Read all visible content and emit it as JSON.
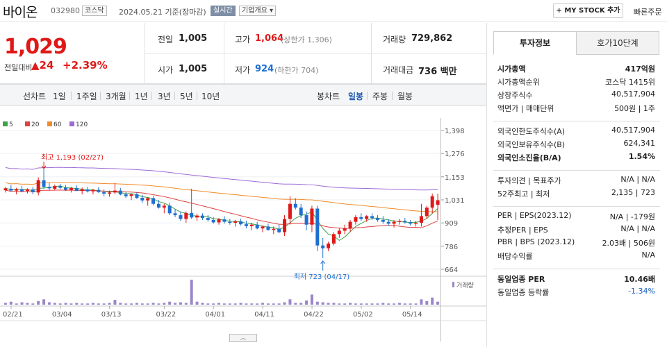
{
  "stock": {
    "name": "바이온",
    "code": "032980",
    "market_tag": "코스닥",
    "date_text": "2024.05.21 기준(장마감)",
    "realtime": "실시간",
    "company_info": "기업개요",
    "mystock": "MY STOCK 추가",
    "quick_order": "빠른주문"
  },
  "price": {
    "current": "1,029",
    "change_label": "전일대비",
    "change_value": "24",
    "change_arrow": "▲",
    "change_pct": "+2.39%"
  },
  "quote": {
    "prev_label": "전일",
    "prev": "1,005",
    "open_label": "시가",
    "open": "1,005",
    "high_label": "고가",
    "high": "1,064",
    "upper_limit": "(상한가 1,306)",
    "low_label": "저가",
    "low": "924",
    "lower_limit": "(하한가 704)",
    "volume_label": "거래량",
    "volume": "729,862",
    "amount_label": "거래대금",
    "amount": "736 백만"
  },
  "chart_tabs": {
    "line_label": "선차트",
    "line": [
      "1일",
      "1주일",
      "3개월",
      "1년",
      "3년",
      "5년",
      "10년"
    ],
    "candle_label": "봉차트",
    "candle": [
      "일봉",
      "주봉",
      "월봉"
    ],
    "selected_candle": "일봉"
  },
  "chart_data": {
    "type": "candlestick",
    "legend": [
      {
        "name": "5",
        "color": "#3aa44a"
      },
      {
        "name": "20",
        "color": "#e04040"
      },
      {
        "name": "60",
        "color": "#f08a2a"
      },
      {
        "name": "120",
        "color": "#9b6ad6"
      }
    ],
    "yticks": [
      "1,398",
      "1,276",
      "1,153",
      "1,031",
      "909",
      "786",
      "664"
    ],
    "ylim": [
      664,
      1398
    ],
    "xticks": [
      "02/21",
      "03/04",
      "03/13",
      "03/22",
      "04/01",
      "04/11",
      "04/22",
      "05/02",
      "05/14"
    ],
    "max_annotation": "최고 1,193 (02/27)",
    "min_annotation": "최저 723 (04/17)",
    "volume_label": "거래량",
    "candles": [
      [
        1082,
        1100,
        1070,
        1092
      ],
      [
        1090,
        1110,
        1075,
        1080
      ],
      [
        1080,
        1095,
        1060,
        1088
      ],
      [
        1088,
        1105,
        1072,
        1076
      ],
      [
        1078,
        1092,
        1065,
        1087
      ],
      [
        1086,
        1100,
        1060,
        1072
      ],
      [
        1070,
        1150,
        1055,
        1135
      ],
      [
        1135,
        1193,
        1090,
        1100
      ],
      [
        1100,
        1120,
        1082,
        1092
      ],
      [
        1090,
        1112,
        1080,
        1104
      ],
      [
        1104,
        1116,
        1088,
        1095
      ],
      [
        1096,
        1110,
        1078,
        1084
      ],
      [
        1084,
        1100,
        1070,
        1094
      ],
      [
        1094,
        1108,
        1080,
        1078
      ],
      [
        1078,
        1096,
        1060,
        1087
      ],
      [
        1086,
        1100,
        1070,
        1076
      ],
      [
        1076,
        1090,
        1060,
        1084
      ],
      [
        1084,
        1098,
        1068,
        1072
      ],
      [
        1072,
        1086,
        1050,
        1064
      ],
      [
        1064,
        1080,
        1048,
        1070
      ],
      [
        1070,
        1120,
        1060,
        1080
      ],
      [
        1080,
        1094,
        1055,
        1060
      ],
      [
        1060,
        1074,
        1040,
        1050
      ],
      [
        1052,
        1066,
        1030,
        1060
      ],
      [
        1060,
        1072,
        1035,
        1042
      ],
      [
        1042,
        1058,
        1015,
        1028
      ],
      [
        1028,
        1046,
        1000,
        1040
      ],
      [
        1040,
        1052,
        1002,
        1010
      ],
      [
        1010,
        1030,
        985,
        990
      ],
      [
        990,
        1010,
        960,
        1000
      ],
      [
        1000,
        1016,
        950,
        960
      ],
      [
        960,
        982,
        940,
        950
      ],
      [
        950,
        970,
        920,
        930
      ],
      [
        930,
        970,
        910,
        962
      ],
      [
        962,
        1090,
        930,
        938
      ],
      [
        938,
        958,
        920,
        948
      ],
      [
        948,
        960,
        925,
        935
      ],
      [
        935,
        950,
        915,
        925
      ],
      [
        925,
        940,
        905,
        912
      ],
      [
        912,
        935,
        900,
        928
      ],
      [
        928,
        945,
        905,
        915
      ],
      [
        915,
        930,
        900,
        910
      ],
      [
        910,
        925,
        890,
        918
      ],
      [
        918,
        932,
        895,
        902
      ],
      [
        902,
        920,
        880,
        892
      ],
      [
        892,
        910,
        870,
        900
      ],
      [
        900,
        915,
        875,
        880
      ],
      [
        880,
        895,
        860,
        890
      ],
      [
        890,
        905,
        868,
        872
      ],
      [
        872,
        890,
        850,
        878
      ],
      [
        878,
        900,
        855,
        860
      ],
      [
        860,
        950,
        840,
        930
      ],
      [
        930,
        1050,
        900,
        1010
      ],
      [
        1010,
        1040,
        980,
        990
      ],
      [
        990,
        1010,
        935,
        950
      ],
      [
        950,
        970,
        870,
        900
      ],
      [
        900,
        1000,
        860,
        985
      ],
      [
        985,
        1000,
        760,
        790
      ],
      [
        790,
        830,
        723,
        775
      ],
      [
        775,
        810,
        760,
        800
      ],
      [
        800,
        860,
        790,
        850
      ],
      [
        850,
        880,
        830,
        868
      ],
      [
        868,
        900,
        850,
        880
      ],
      [
        880,
        925,
        860,
        915
      ],
      [
        915,
        950,
        900,
        940
      ],
      [
        940,
        960,
        920,
        930
      ],
      [
        930,
        950,
        915,
        945
      ],
      [
        945,
        960,
        925,
        935
      ],
      [
        935,
        950,
        915,
        925
      ],
      [
        925,
        945,
        905,
        915
      ],
      [
        915,
        930,
        895,
        905
      ],
      [
        905,
        925,
        885,
        915
      ],
      [
        915,
        930,
        900,
        920
      ],
      [
        920,
        935,
        905,
        912
      ],
      [
        912,
        925,
        895,
        905
      ],
      [
        905,
        920,
        890,
        910
      ],
      [
        910,
        1010,
        890,
        945
      ],
      [
        945,
        1000,
        930,
        990
      ],
      [
        990,
        1064,
        960,
        1050
      ],
      [
        1005,
        1064,
        924,
        1029
      ]
    ],
    "volumes": [
      3,
      5,
      2,
      4,
      3,
      2,
      6,
      9,
      4,
      3,
      2,
      3,
      2,
      3,
      2,
      2,
      3,
      2,
      2,
      3,
      8,
      3,
      2,
      2,
      3,
      2,
      2,
      3,
      2,
      3,
      5,
      3,
      4,
      3,
      42,
      5,
      3,
      2,
      2,
      3,
      2,
      2,
      2,
      3,
      2,
      2,
      2,
      3,
      2,
      2,
      2,
      4,
      9,
      3,
      3,
      7,
      17,
      5,
      4,
      3,
      3,
      2,
      2,
      3,
      2,
      2,
      2,
      2,
      2,
      3,
      2,
      2,
      3,
      2,
      2,
      2,
      9,
      6,
      12,
      5
    ]
  },
  "right_tabs": [
    "투자정보",
    "호가10단계"
  ],
  "info": [
    {
      "label": "시가총액",
      "value": "417억원",
      "bold": true
    },
    {
      "label": "시가총액순위",
      "value": "코스닥  1415위"
    },
    {
      "label": "상장주식수",
      "value": "40,517,904"
    },
    {
      "label": "액면가 | 매매단위",
      "value": "500원 | 1주"
    },
    {
      "label": "외국인한도주식수(A)",
      "value": "40,517,904"
    },
    {
      "label": "외국인보유주식수(B)",
      "value": "624,341"
    },
    {
      "label": "외국인소진율(B/A)",
      "value": "1.54%",
      "bold": true
    },
    {
      "label": "투자의견 | 목표주가",
      "value": "N/A | N/A"
    },
    {
      "label": "52주최고 | 최저",
      "value": "2,135 | 723"
    },
    {
      "label": "PER | EPS(2023.12)",
      "value": "N/A | -179원"
    },
    {
      "label": "추정PER | EPS",
      "value": "N/A | N/A"
    },
    {
      "label": "PBR | BPS (2023.12)",
      "value": "2.03배 | 506원"
    },
    {
      "label": "배당수익률",
      "value": "N/A"
    },
    {
      "label": "동일업종 PER",
      "value": "10.46배",
      "bold": true
    },
    {
      "label": "동일업종 등락률",
      "value": "-1.34%",
      "color": "#1a5fc4"
    }
  ],
  "colors": {
    "up": "#e01818",
    "down": "#1f6fd0",
    "accent": "#1f5bb0"
  }
}
